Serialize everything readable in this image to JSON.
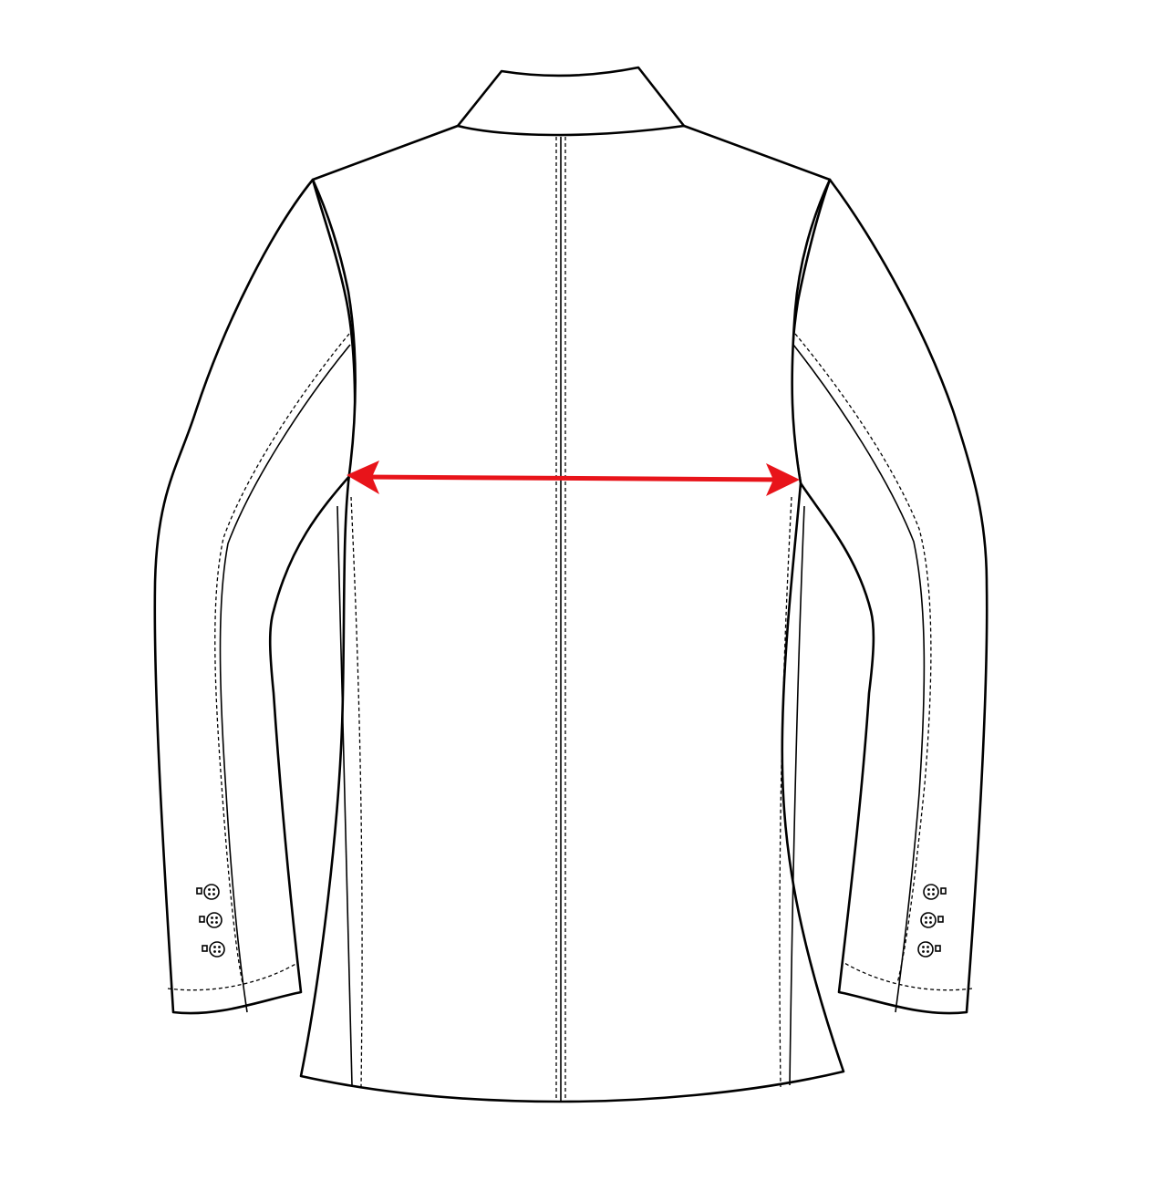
{
  "figure": {
    "subject": "jacket-back-flat-sketch",
    "measurement": "chest-width",
    "colors": {
      "line": "#000000",
      "background": "#ffffff",
      "measure_arrow": "#e8141a"
    },
    "sleeve_buttons_per_cuff": 3
  }
}
